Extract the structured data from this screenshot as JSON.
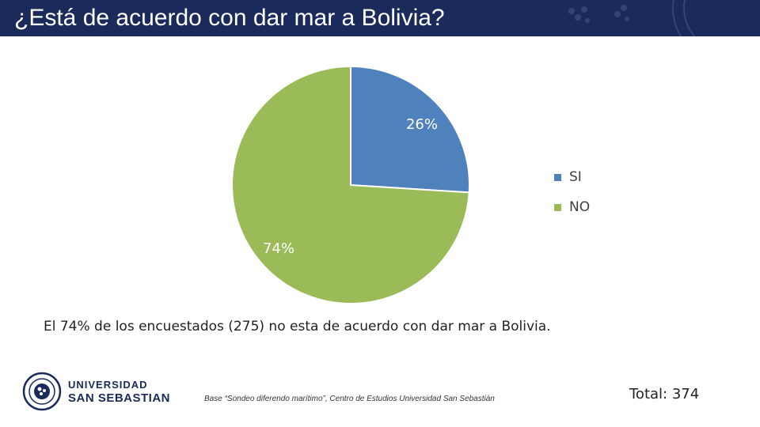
{
  "header": {
    "title": "¿Está de acuerdo con dar mar a Bolivia?"
  },
  "chart_data": {
    "type": "pie",
    "categories": [
      "SI",
      "NO"
    ],
    "values": [
      26,
      74
    ],
    "data_labels": [
      "26%",
      "74%"
    ],
    "colors": [
      "#4f81bd",
      "#9bbb59"
    ],
    "legend_position": "right"
  },
  "summary": "El 74% de los encuestados (275) no esta de acuerdo con dar mar a Bolivia.",
  "logo": {
    "line1": "UNIVERSIDAD",
    "line2": "SAN SEBASTIAN"
  },
  "source": "Base “Sondeo diferendo marítimo”, Centro de Estudios Universidad San Sebastián",
  "total": "Total: 374",
  "colors": {
    "header_bg": "#1a2a5a"
  }
}
